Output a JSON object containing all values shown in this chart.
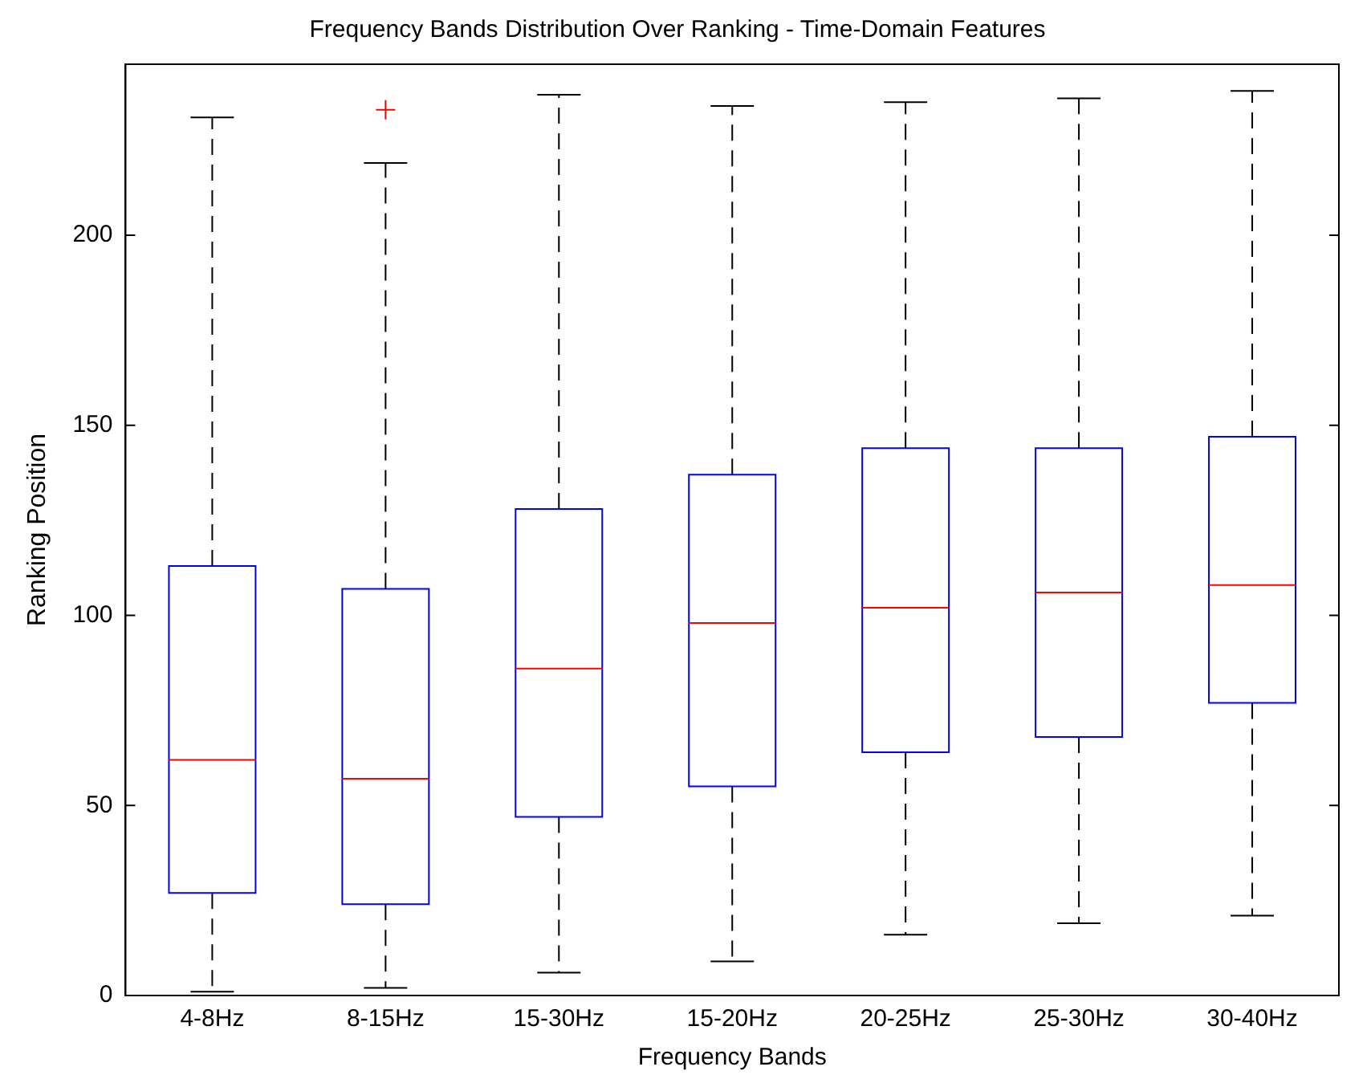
{
  "chart_data": {
    "type": "box",
    "title": "Frequency Bands Distribution Over Ranking - Time-Domain Features",
    "xlabel": "Frequency Bands",
    "ylabel": "Ranking Position",
    "categories": [
      "4-8Hz",
      "8-15Hz",
      "15-30Hz",
      "15-20Hz",
      "20-25Hz",
      "25-30Hz",
      "30-40Hz"
    ],
    "series": [
      {
        "color": "#0000ff",
        "boxes": [
          {
            "low": 1,
            "q1": 27,
            "median": 62,
            "q3": 113,
            "high": 231
          },
          {
            "low": 2,
            "q1": 24,
            "median": 57,
            "q3": 107,
            "high": 219,
            "outliers": [
              233
            ]
          },
          {
            "low": 6,
            "q1": 47,
            "median": 86,
            "q3": 128,
            "high": 237
          },
          {
            "low": 9,
            "q1": 55,
            "median": 98,
            "q3": 137,
            "high": 234
          },
          {
            "low": 16,
            "q1": 64,
            "median": 102,
            "q3": 144,
            "high": 235
          },
          {
            "low": 19,
            "q1": 68,
            "median": 106,
            "q3": 144,
            "high": 236
          },
          {
            "low": 21,
            "q1": 77,
            "median": 108,
            "q3": 147,
            "high": 238
          }
        ]
      }
    ],
    "ylim": [
      0,
      245
    ],
    "yticks": [
      0,
      50,
      100,
      150,
      200
    ],
    "marker": "cross"
  }
}
